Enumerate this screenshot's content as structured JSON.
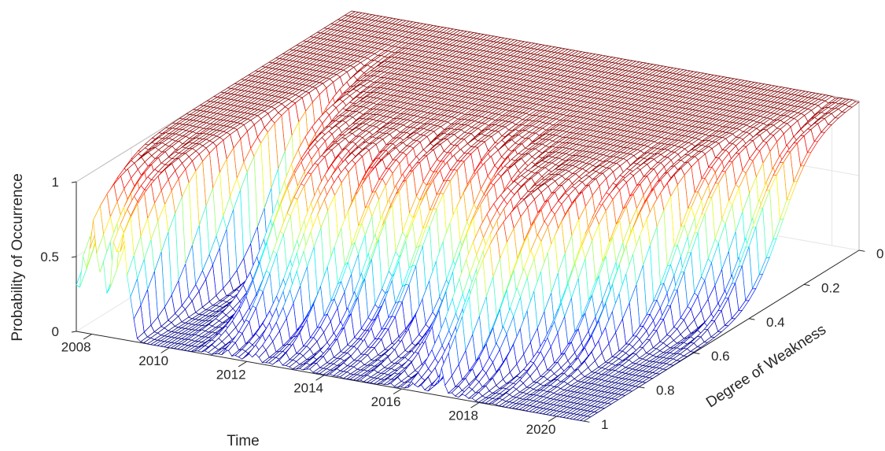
{
  "chart_data": {
    "type": "surface-mesh",
    "colormap": "jet",
    "xlabel": "Time",
    "ylabel": "Degree of Weakness",
    "zlabel": "Probability of Occurrence",
    "xlim": [
      2007.6,
      2020.7
    ],
    "ylim": [
      0,
      1
    ],
    "zlim": [
      0,
      1
    ],
    "x_ticks": [
      "2008",
      "2010",
      "2012",
      "2014",
      "2016",
      "2018",
      "2020"
    ],
    "y_ticks": [
      "0",
      "0.2",
      "0.4",
      "0.6",
      "0.8",
      "1"
    ],
    "z_ticks": [
      "0",
      "0.5",
      "1"
    ],
    "grid": true,
    "surface_description_points": [
      {
        "time": 2008.0,
        "weakness_threshold": 1.0
      },
      {
        "time": 2009.0,
        "weakness_threshold": 1.0
      },
      {
        "time": 2009.5,
        "weakness_threshold": 0.45
      },
      {
        "time": 2010.0,
        "weakness_threshold": 0.55
      },
      {
        "time": 2011.0,
        "weakness_threshold": 0.75
      },
      {
        "time": 2012.0,
        "weakness_threshold": 0.8
      },
      {
        "time": 2013.0,
        "weakness_threshold": 0.75
      },
      {
        "time": 2014.0,
        "weakness_threshold": 0.7
      },
      {
        "time": 2015.0,
        "weakness_threshold": 0.65
      },
      {
        "time": 2016.0,
        "weakness_threshold": 0.75
      },
      {
        "time": 2017.0,
        "weakness_threshold": 0.85
      },
      {
        "time": 2018.0,
        "weakness_threshold": 0.7
      },
      {
        "time": 2019.0,
        "weakness_threshold": 0.6
      },
      {
        "time": 2020.0,
        "weakness_threshold": 0.35
      },
      {
        "time": 2020.6,
        "weakness_threshold": 0.3
      }
    ]
  }
}
